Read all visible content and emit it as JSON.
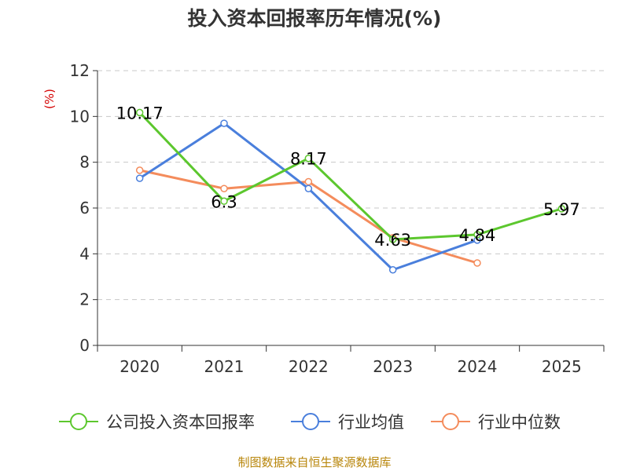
{
  "chart_data": {
    "type": "line",
    "title": "投入资本回报率历年情况(%)",
    "ylabel": "(%)",
    "xlabel": "",
    "ylim": [
      0,
      12
    ],
    "yticks": [
      0,
      2,
      4,
      6,
      8,
      10,
      12
    ],
    "categories": [
      "2020",
      "2021",
      "2022",
      "2023",
      "2024",
      "2025"
    ],
    "series": [
      {
        "name": "公司投入资本回报率",
        "color": "#5cc72e",
        "values": [
          10.17,
          6.3,
          8.17,
          4.63,
          4.84,
          5.97
        ],
        "labels": [
          "10.17",
          "6.3",
          "8.17",
          "4.63",
          "4.84",
          "5.97"
        ]
      },
      {
        "name": "行业均值",
        "color": "#4a7fdc",
        "values": [
          7.3,
          9.7,
          6.85,
          3.3,
          4.6,
          null
        ]
      },
      {
        "name": "行业中位数",
        "color": "#f48c5c",
        "values": [
          7.65,
          6.85,
          7.15,
          4.7,
          3.6,
          null
        ]
      }
    ],
    "legend_position": "bottom",
    "grid": true
  },
  "source": "制图数据来自恒生聚源数据库"
}
